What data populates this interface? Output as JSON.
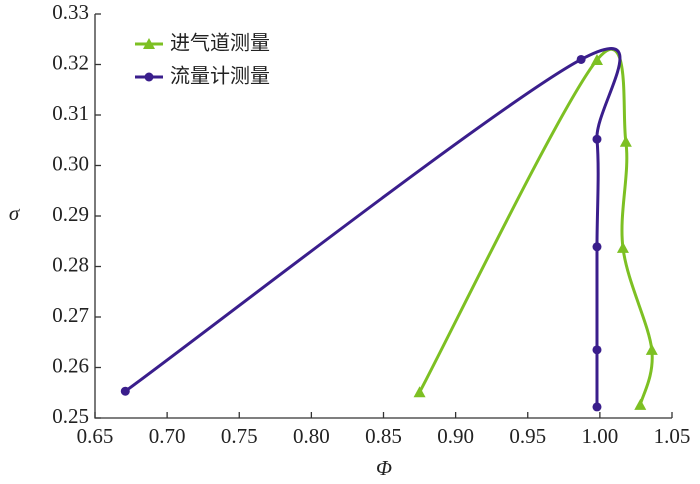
{
  "chart_data": {
    "type": "line",
    "x_label": "Φ",
    "y_label": "σ",
    "xlim": [
      0.65,
      1.05
    ],
    "xticks": [
      {
        "value": 0.65,
        "label": "0.65"
      },
      {
        "value": 0.7,
        "label": "0.70"
      },
      {
        "value": 0.75,
        "label": "0.75"
      },
      {
        "value": 0.8,
        "label": "0.80"
      },
      {
        "value": 0.85,
        "label": "0.85"
      },
      {
        "value": 0.9,
        "label": "0.90"
      },
      {
        "value": 0.95,
        "label": "0.95"
      },
      {
        "value": 1.0,
        "label": "1.00"
      },
      {
        "value": 1.05,
        "label": "1.05"
      }
    ],
    "ylim": [
      0.25,
      0.33
    ],
    "yticks": [
      {
        "value": 0.25,
        "label": "0.25"
      },
      {
        "value": 0.26,
        "label": "0.26"
      },
      {
        "value": 0.27,
        "label": "0.27"
      },
      {
        "value": 0.28,
        "label": "0.28"
      },
      {
        "value": 0.29,
        "label": "0.29"
      },
      {
        "value": 0.3,
        "label": "0.30"
      },
      {
        "value": 0.31,
        "label": "0.31"
      },
      {
        "value": 0.32,
        "label": "0.32"
      },
      {
        "value": 0.33,
        "label": "0.33"
      }
    ],
    "legend": "upper left",
    "series": [
      {
        "name": "进气道测量",
        "color": "#7dc023",
        "marker": "triangle",
        "x": [
          0.875,
          0.998,
          1.018,
          1.016,
          1.036,
          1.028
        ],
        "values": [
          0.2551,
          0.3209,
          0.3047,
          0.2837,
          0.2635,
          0.2526
        ]
      },
      {
        "name": "流量计测量",
        "color": "#3a1e8c",
        "marker": "circle",
        "x": [
          0.671,
          0.987,
          0.998,
          0.998,
          0.998,
          0.998
        ],
        "values": [
          0.2553,
          0.321,
          0.3052,
          0.2839,
          0.2635,
          0.2522
        ]
      }
    ]
  }
}
